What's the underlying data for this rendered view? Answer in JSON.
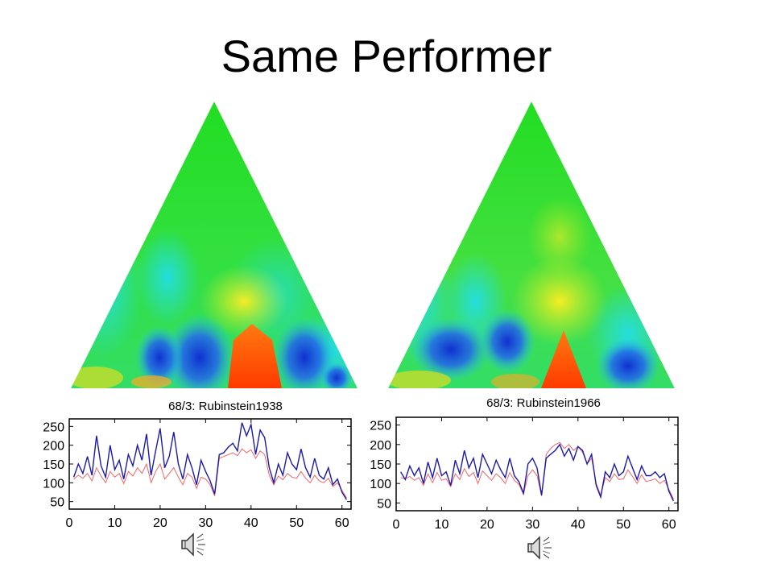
{
  "slide": {
    "title": "Same Performer"
  },
  "scapes": [
    {
      "name": "Rubinstein1938 scape plot",
      "peak_color": "#ff4000"
    },
    {
      "name": "Rubinstein1966 scape plot",
      "peak_color": "#ff4000"
    }
  ],
  "chart_data": [
    {
      "type": "line",
      "title": "68/3: Rubinstein1938",
      "xlabel": "",
      "ylabel": "",
      "xlim": [
        0,
        62
      ],
      "ylim": [
        30,
        270
      ],
      "xticks": [
        "0",
        "10",
        "20",
        "30",
        "40",
        "50",
        "60"
      ],
      "yticks": [
        "50",
        "100",
        "150",
        "200",
        "250"
      ],
      "series": [
        {
          "color": "#1a1aa8",
          "x": [
            1,
            2,
            3,
            4,
            5,
            6,
            7,
            8,
            9,
            10,
            11,
            12,
            13,
            14,
            15,
            16,
            17,
            18,
            19,
            20,
            21,
            22,
            23,
            24,
            25,
            26,
            27,
            28,
            29,
            30,
            31,
            32,
            33,
            34,
            35,
            36,
            37,
            38,
            39,
            40,
            41,
            42,
            43,
            44,
            45,
            46,
            47,
            48,
            49,
            50,
            51,
            52,
            53,
            54,
            55,
            56,
            57,
            58,
            59,
            60,
            61
          ],
          "values": [
            115,
            150,
            125,
            170,
            120,
            225,
            145,
            115,
            200,
            135,
            160,
            110,
            175,
            145,
            200,
            160,
            230,
            120,
            185,
            245,
            140,
            170,
            235,
            150,
            110,
            175,
            140,
            95,
            160,
            130,
            105,
            70,
            175,
            180,
            195,
            205,
            185,
            260,
            225,
            255,
            175,
            240,
            220,
            140,
            100,
            150,
            120,
            180,
            150,
            135,
            190,
            140,
            115,
            165,
            120,
            110,
            140,
            95,
            110,
            75,
            55
          ]
        },
        {
          "color": "#ee6666",
          "x": [
            1,
            2,
            3,
            4,
            5,
            6,
            7,
            8,
            9,
            10,
            11,
            12,
            13,
            14,
            15,
            16,
            17,
            18,
            19,
            20,
            21,
            22,
            23,
            24,
            25,
            26,
            27,
            28,
            29,
            30,
            31,
            32,
            33,
            34,
            35,
            36,
            37,
            38,
            39,
            40,
            41,
            42,
            43,
            44,
            45,
            46,
            47,
            48,
            49,
            50,
            51,
            52,
            53,
            54,
            55,
            56,
            57,
            58,
            59,
            60,
            61
          ],
          "values": [
            110,
            120,
            112,
            125,
            105,
            140,
            118,
            100,
            130,
            115,
            125,
            98,
            130,
            118,
            140,
            125,
            150,
            100,
            130,
            150,
            110,
            125,
            140,
            115,
            95,
            125,
            115,
            85,
            115,
            110,
            95,
            65,
            165,
            170,
            175,
            180,
            172,
            190,
            180,
            188,
            165,
            185,
            175,
            120,
            95,
            118,
            108,
            125,
            115,
            112,
            130,
            112,
            100,
            120,
            105,
            100,
            112,
            90,
            100,
            80,
            60
          ]
        }
      ]
    },
    {
      "type": "line",
      "title": "68/3: Rubinstein1966",
      "xlabel": "",
      "ylabel": "",
      "xlim": [
        0,
        62
      ],
      "ylim": [
        30,
        270
      ],
      "xticks": [
        "0",
        "10",
        "20",
        "30",
        "40",
        "50",
        "60"
      ],
      "yticks": [
        "50",
        "100",
        "150",
        "200",
        "250"
      ],
      "series": [
        {
          "color": "#1a1aa8",
          "x": [
            1,
            2,
            3,
            4,
            5,
            6,
            7,
            8,
            9,
            10,
            11,
            12,
            13,
            14,
            15,
            16,
            17,
            18,
            19,
            20,
            21,
            22,
            23,
            24,
            25,
            26,
            27,
            28,
            29,
            30,
            31,
            32,
            33,
            34,
            35,
            36,
            37,
            38,
            39,
            40,
            41,
            42,
            43,
            44,
            45,
            46,
            47,
            48,
            49,
            50,
            51,
            52,
            53,
            54,
            55,
            56,
            57,
            58,
            59,
            60,
            61
          ],
          "values": [
            130,
            110,
            145,
            120,
            140,
            100,
            155,
            115,
            165,
            120,
            130,
            95,
            160,
            125,
            185,
            140,
            165,
            115,
            175,
            150,
            125,
            160,
            135,
            115,
            165,
            120,
            105,
            75,
            150,
            165,
            140,
            70,
            165,
            175,
            185,
            200,
            170,
            190,
            160,
            195,
            185,
            150,
            175,
            95,
            65,
            130,
            115,
            150,
            120,
            130,
            170,
            140,
            110,
            145,
            120,
            120,
            130,
            115,
            125,
            80,
            55
          ]
        },
        {
          "color": "#ee6666",
          "x": [
            1,
            2,
            3,
            4,
            5,
            6,
            7,
            8,
            9,
            10,
            11,
            12,
            13,
            14,
            15,
            16,
            17,
            18,
            19,
            20,
            21,
            22,
            23,
            24,
            25,
            26,
            27,
            28,
            29,
            30,
            31,
            32,
            33,
            34,
            35,
            36,
            37,
            38,
            39,
            40,
            41,
            42,
            43,
            44,
            45,
            46,
            47,
            48,
            49,
            50,
            51,
            52,
            53,
            54,
            55,
            56,
            57,
            58,
            59,
            60,
            61
          ],
          "values": [
            115,
            112,
            118,
            108,
            115,
            95,
            125,
            102,
            128,
            108,
            112,
            92,
            125,
            110,
            138,
            118,
            128,
            100,
            132,
            120,
            108,
            125,
            115,
            100,
            128,
            108,
            98,
            72,
            120,
            135,
            120,
            68,
            175,
            190,
            200,
            205,
            190,
            200,
            185,
            195,
            180,
            150,
            165,
            100,
            70,
            115,
            105,
            125,
            110,
            112,
            135,
            118,
            100,
            122,
            105,
            108,
            112,
            100,
            108,
            85,
            60
          ]
        }
      ]
    }
  ]
}
